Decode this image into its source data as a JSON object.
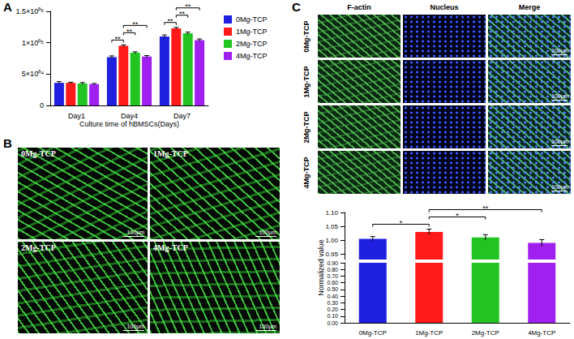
{
  "panel_labels": [
    "A",
    "B",
    "C"
  ],
  "chart_data": [
    {
      "type": "bar",
      "x_label": "Culture time of hBMSCs(Days)",
      "categories": [
        "Day1",
        "Day4",
        "Day7"
      ],
      "series": [
        {
          "name": "0Mg-TCP",
          "color": "#1f1fe0",
          "values": [
            36000,
            77000,
            110000
          ],
          "errors": [
            2000,
            2000,
            2500
          ]
        },
        {
          "name": "1Mg-TCP",
          "color": "#ff1a1a",
          "values": [
            36000,
            95000,
            123000
          ],
          "errors": [
            1000,
            1500,
            1500
          ]
        },
        {
          "name": "2Mg-TCP",
          "color": "#22c422",
          "values": [
            35000,
            84000,
            115000
          ],
          "errors": [
            1500,
            1500,
            2000
          ]
        },
        {
          "name": "4Mg-TCP",
          "color": "#a020f0",
          "values": [
            34000,
            78000,
            104000
          ],
          "errors": [
            1000,
            1500,
            2000
          ]
        }
      ],
      "ylim": [
        0,
        150000
      ],
      "yticks": [
        0,
        {
          "value": 50000,
          "label": "5×10⁰⁴"
        },
        {
          "value": 100000,
          "label": "1×10⁰⁵"
        },
        {
          "value": 150000,
          "label": "1.5×10⁰⁵"
        }
      ],
      "grid": false,
      "legend": "right",
      "annotations": [
        {
          "category": "Day4",
          "from": "0Mg-TCP",
          "to": "1Mg-TCP",
          "label": "**"
        },
        {
          "category": "Day4",
          "from": "1Mg-TCP",
          "to": "2Mg-TCP",
          "label": "**"
        },
        {
          "category": "Day4",
          "from": "1Mg-TCP",
          "to": "4Mg-TCP",
          "label": "**"
        },
        {
          "category": "Day7",
          "from": "0Mg-TCP",
          "to": "1Mg-TCP",
          "label": "**"
        },
        {
          "category": "Day7",
          "from": "1Mg-TCP",
          "to": "2Mg-TCP",
          "label": "**"
        },
        {
          "category": "Day7",
          "from": "1Mg-TCP",
          "to": "4Mg-TCP",
          "label": "**"
        }
      ]
    },
    {
      "type": "bar",
      "y_label": "Normalized value",
      "categories": [
        "0Mg-TCP",
        "1Mg-TCP",
        "2Mg-TCP",
        "4Mg-TCP"
      ],
      "values": [
        1.005,
        1.03,
        1.01,
        0.99
      ],
      "errors": [
        0.008,
        0.01,
        0.01,
        0.012
      ],
      "colors": [
        "#1f1fe0",
        "#ff1a1a",
        "#22c422",
        "#a020f0"
      ],
      "grid": false,
      "y_segments": [
        {
          "ylim": [
            0.93,
            1.1
          ],
          "yticks": [
            0.95,
            {
              "value": 1.0,
              "label": "1.00"
            },
            1.05,
            {
              "value": 1.1,
              "label": "1.10"
            }
          ]
        },
        {
          "ylim": [
            0,
            0.9
          ],
          "yticks": [
            {
              "value": 0,
              "label": "0.00"
            },
            {
              "value": 0.1,
              "label": "0.10"
            },
            {
              "value": 0.2,
              "label": "0.20"
            },
            {
              "value": 0.3,
              "label": "0.30"
            },
            {
              "value": 0.4,
              "label": "0.40"
            },
            {
              "value": 0.5,
              "label": "0.50"
            },
            {
              "value": 0.6,
              "label": "0.60"
            },
            {
              "value": 0.7,
              "label": "0.70"
            },
            {
              "value": 0.8,
              "label": "0.80"
            },
            {
              "value": 0.9,
              "label": "0.90"
            }
          ]
        }
      ],
      "annotations": [
        {
          "from": "0Mg-TCP",
          "to": "1Mg-TCP",
          "label": "*"
        },
        {
          "from": "1Mg-TCP",
          "to": "2Mg-TCP",
          "label": "*"
        },
        {
          "from": "1Mg-TCP",
          "to": "4Mg-TCP",
          "label": "**"
        }
      ]
    }
  ],
  "images": {
    "B": {
      "labels": [
        "0Mg-TCP",
        "1Mg-TCP",
        "2Mg-TCP",
        "4Mg-TCP"
      ],
      "scale_bar": "100μm"
    },
    "C": {
      "columns": [
        "F-actin",
        "Nucleus",
        "Merge"
      ],
      "rows": [
        "0Mg-TCP",
        "1Mg-TCP",
        "2Mg-TCP",
        "4Mg-TCP"
      ],
      "scale_bar": "100μm"
    }
  }
}
